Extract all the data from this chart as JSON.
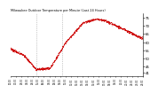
{
  "title": "Milwaukee Outdoor Temperature per Minute (Last 24 Hours)",
  "bg_color": "#ffffff",
  "line_color": "#cc0000",
  "vline_color": "#999999",
  "y_ticks": [
    41,
    45,
    50,
    55,
    60,
    65,
    70,
    75
  ],
  "ylim": [
    39,
    78
  ],
  "xlim": [
    0,
    1
  ],
  "n_points": 1440,
  "vline_positions": [
    0.195,
    0.39
  ],
  "temp_profile_x": [
    0.0,
    0.04,
    0.1,
    0.195,
    0.3,
    0.42,
    0.55,
    0.65,
    0.72,
    0.8,
    1.0
  ],
  "temp_profile_y": [
    56,
    54,
    52,
    43,
    44,
    60,
    72,
    74,
    73,
    70,
    62
  ]
}
